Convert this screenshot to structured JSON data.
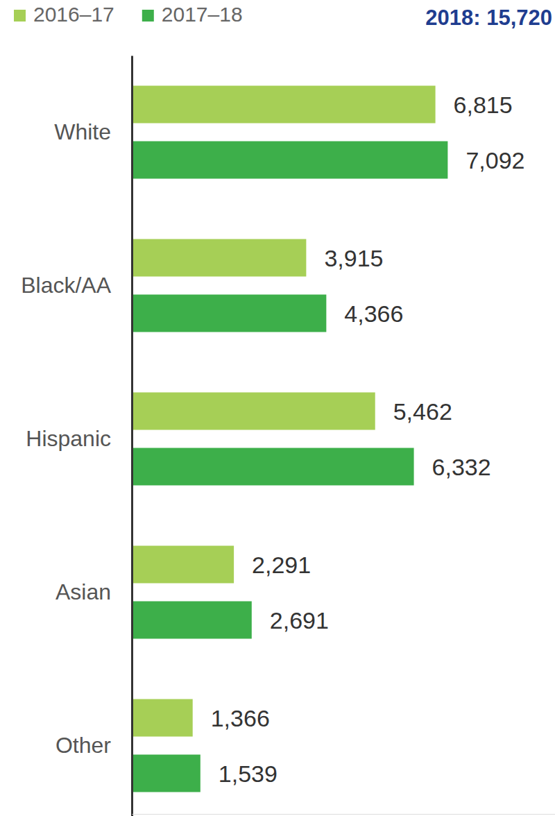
{
  "chart_data": {
    "type": "bar",
    "orientation": "horizontal",
    "title": "2018: 15,720",
    "categories": [
      "White",
      "Black/AA",
      "Hispanic",
      "Asian",
      "Other"
    ],
    "series": [
      {
        "name": "2016–17",
        "color": "#a6cf56",
        "values": [
          6815,
          3915,
          5462,
          2291,
          1366
        ],
        "value_labels": [
          "6,815",
          "3,915",
          "5,462",
          "2,291",
          "1,366"
        ]
      },
      {
        "name": "2017–18",
        "color": "#3daf4a",
        "values": [
          7092,
          4366,
          6332,
          2691,
          1539
        ],
        "value_labels": [
          "7,092",
          "4,366",
          "6,332",
          "2,691",
          "1,539"
        ]
      }
    ],
    "xlim": [
      0,
      9500
    ],
    "tick_labels": false,
    "data_labels": true,
    "legend": "top-left"
  }
}
